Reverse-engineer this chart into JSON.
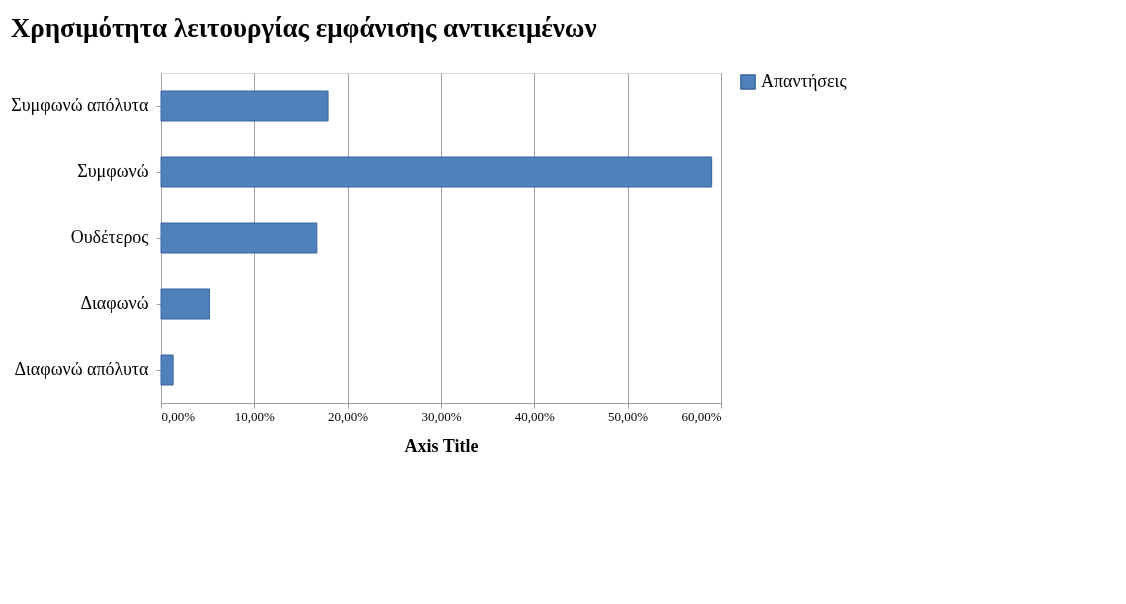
{
  "chart_data": {
    "type": "bar",
    "orientation": "horizontal",
    "title": "Χρησιμότητα λειτουργίας εμφάνισης αντικειμένων",
    "xlabel": "Axis Title",
    "categories": [
      "Συμφωνώ απόλυτα",
      "Συμφωνώ",
      "Ουδέτερος",
      "Διαφωνώ",
      "Διαφωνώ απόλυτα"
    ],
    "series": [
      {
        "name": "Απαντήσεις",
        "color": "#4f81bd",
        "values": [
          17.9,
          59.0,
          16.7,
          5.2,
          1.3
        ]
      }
    ],
    "xlim": [
      0,
      60
    ],
    "xticks": [
      {
        "value": 0,
        "label": "0,00%"
      },
      {
        "value": 10,
        "label": "10,00%"
      },
      {
        "value": 20,
        "label": "20,00%"
      },
      {
        "value": 30,
        "label": "30,00%"
      },
      {
        "value": 40,
        "label": "40,00%"
      },
      {
        "value": 50,
        "label": "50,00%"
      },
      {
        "value": 60,
        "label": "60,00%"
      }
    ],
    "grid": "x",
    "legend": "right"
  }
}
